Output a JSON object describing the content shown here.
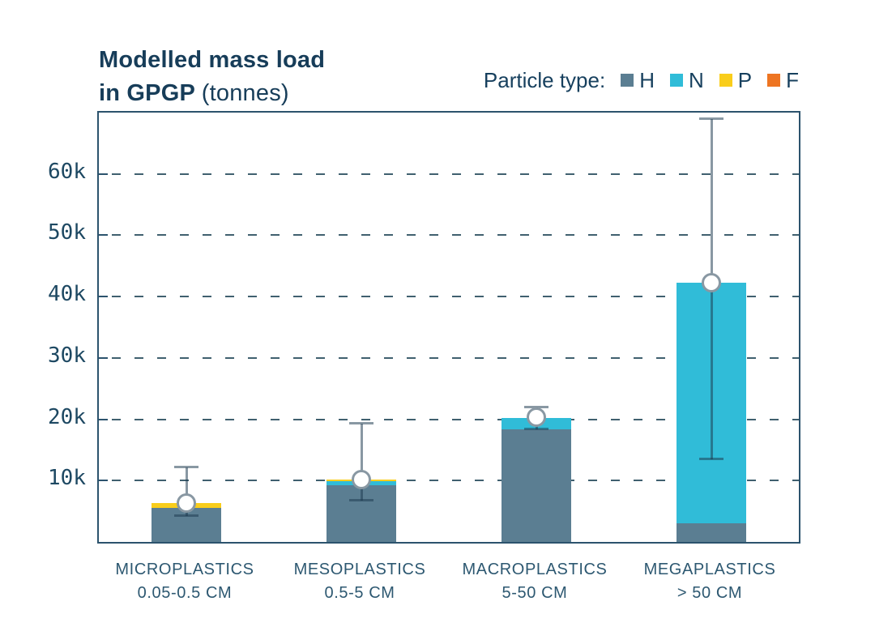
{
  "title": {
    "line1": "Modelled mass load",
    "line2_bold": "in GPGP",
    "line2_regular": "(tonnes)"
  },
  "legend": {
    "title_label": "Particle type:",
    "items": [
      {
        "label": "H",
        "color": "#5b7e92"
      },
      {
        "label": "N",
        "color": "#30bcd8"
      },
      {
        "label": "P",
        "color": "#f9cd1b"
      },
      {
        "label": "F",
        "color": "#ee7522"
      }
    ]
  },
  "colors": {
    "title_text": "#173d59",
    "axis_text": "#1d4862",
    "category_text": "#2d5871",
    "plot_border": "#2c536d",
    "gridline": "#40606f",
    "error_bar": "rgba(28,58,78,0.52)",
    "background": "#ffffff"
  },
  "chart_data": {
    "type": "bar",
    "stacked": true,
    "title": "Modelled mass load in GPGP (tonnes)",
    "xlabel": "",
    "ylabel": "tonnes",
    "categories": [
      "MICROPLASTICS",
      "MESOPLASTICS",
      "MACROPLASTICS",
      "MEGAPLASTICS"
    ],
    "category_sublabels": [
      "0.05-0.5 CM",
      "0.5-5 CM",
      "5-50 CM",
      "> 50 CM"
    ],
    "series": [
      {
        "name": "H",
        "color": "#5b7e92",
        "values": [
          5600,
          9200,
          18300,
          3000
        ]
      },
      {
        "name": "N",
        "color": "#30bcd8",
        "values": [
          0,
          650,
          1950,
          39300
        ]
      },
      {
        "name": "P",
        "color": "#f9cd1b",
        "values": [
          800,
          280,
          0,
          0
        ]
      },
      {
        "name": "F",
        "color": "#ee7522",
        "values": [
          0,
          0,
          0,
          0
        ]
      }
    ],
    "totals": [
      6400,
      10130,
      20250,
      42300
    ],
    "error_bars": {
      "marker": [
        6400,
        10130,
        20300,
        42300
      ],
      "low": [
        4200,
        6700,
        18400,
        13500
      ],
      "high": [
        12200,
        19300,
        21900,
        69000
      ]
    },
    "yticks": [
      {
        "value": 10000,
        "label": "10k"
      },
      {
        "value": 20000,
        "label": "20k"
      },
      {
        "value": 30000,
        "label": "30k"
      },
      {
        "value": 40000,
        "label": "40k"
      },
      {
        "value": 50000,
        "label": "50k"
      },
      {
        "value": 60000,
        "label": "60k"
      }
    ],
    "ylim": [
      0,
      70000
    ],
    "grid": "dashed-horizontal",
    "legend_position": "top-right"
  }
}
